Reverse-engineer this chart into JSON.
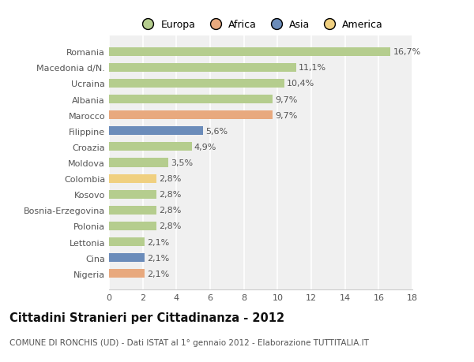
{
  "categories": [
    "Nigeria",
    "Cina",
    "Lettonia",
    "Polonia",
    "Bosnia-Erzegovina",
    "Kosovo",
    "Colombia",
    "Moldova",
    "Croazia",
    "Filippine",
    "Marocco",
    "Albania",
    "Ucraina",
    "Macedonia d/N.",
    "Romania"
  ],
  "values": [
    2.1,
    2.1,
    2.1,
    2.8,
    2.8,
    2.8,
    2.8,
    3.5,
    4.9,
    5.6,
    9.7,
    9.7,
    10.4,
    11.1,
    16.7
  ],
  "labels": [
    "2,1%",
    "2,1%",
    "2,1%",
    "2,8%",
    "2,8%",
    "2,8%",
    "2,8%",
    "3,5%",
    "4,9%",
    "5,6%",
    "9,7%",
    "9,7%",
    "10,4%",
    "11,1%",
    "16,7%"
  ],
  "colors": [
    "#e8a97e",
    "#6b8cba",
    "#b5cd8e",
    "#b5cd8e",
    "#b5cd8e",
    "#b5cd8e",
    "#f0d080",
    "#b5cd8e",
    "#b5cd8e",
    "#6b8cba",
    "#e8a97e",
    "#b5cd8e",
    "#b5cd8e",
    "#b5cd8e",
    "#b5cd8e"
  ],
  "legend_labels": [
    "Europa",
    "Africa",
    "Asia",
    "America"
  ],
  "legend_colors": [
    "#b5cd8e",
    "#e8a97e",
    "#6b8cba",
    "#f0d080"
  ],
  "title": "Cittadini Stranieri per Cittadinanza - 2012",
  "subtitle": "COMUNE DI RONCHIS (UD) - Dati ISTAT al 1° gennaio 2012 - Elaborazione TUTTITALIA.IT",
  "xlim": [
    0,
    18
  ],
  "xticks": [
    0,
    2,
    4,
    6,
    8,
    10,
    12,
    14,
    16,
    18
  ],
  "background_color": "#ffffff",
  "plot_bg_color": "#f0f0f0",
  "grid_color": "#ffffff",
  "bar_height": 0.55,
  "label_fontsize": 8,
  "tick_fontsize": 8,
  "title_fontsize": 10.5,
  "subtitle_fontsize": 7.5,
  "ylabel_color": "#555555",
  "label_color": "#555555"
}
